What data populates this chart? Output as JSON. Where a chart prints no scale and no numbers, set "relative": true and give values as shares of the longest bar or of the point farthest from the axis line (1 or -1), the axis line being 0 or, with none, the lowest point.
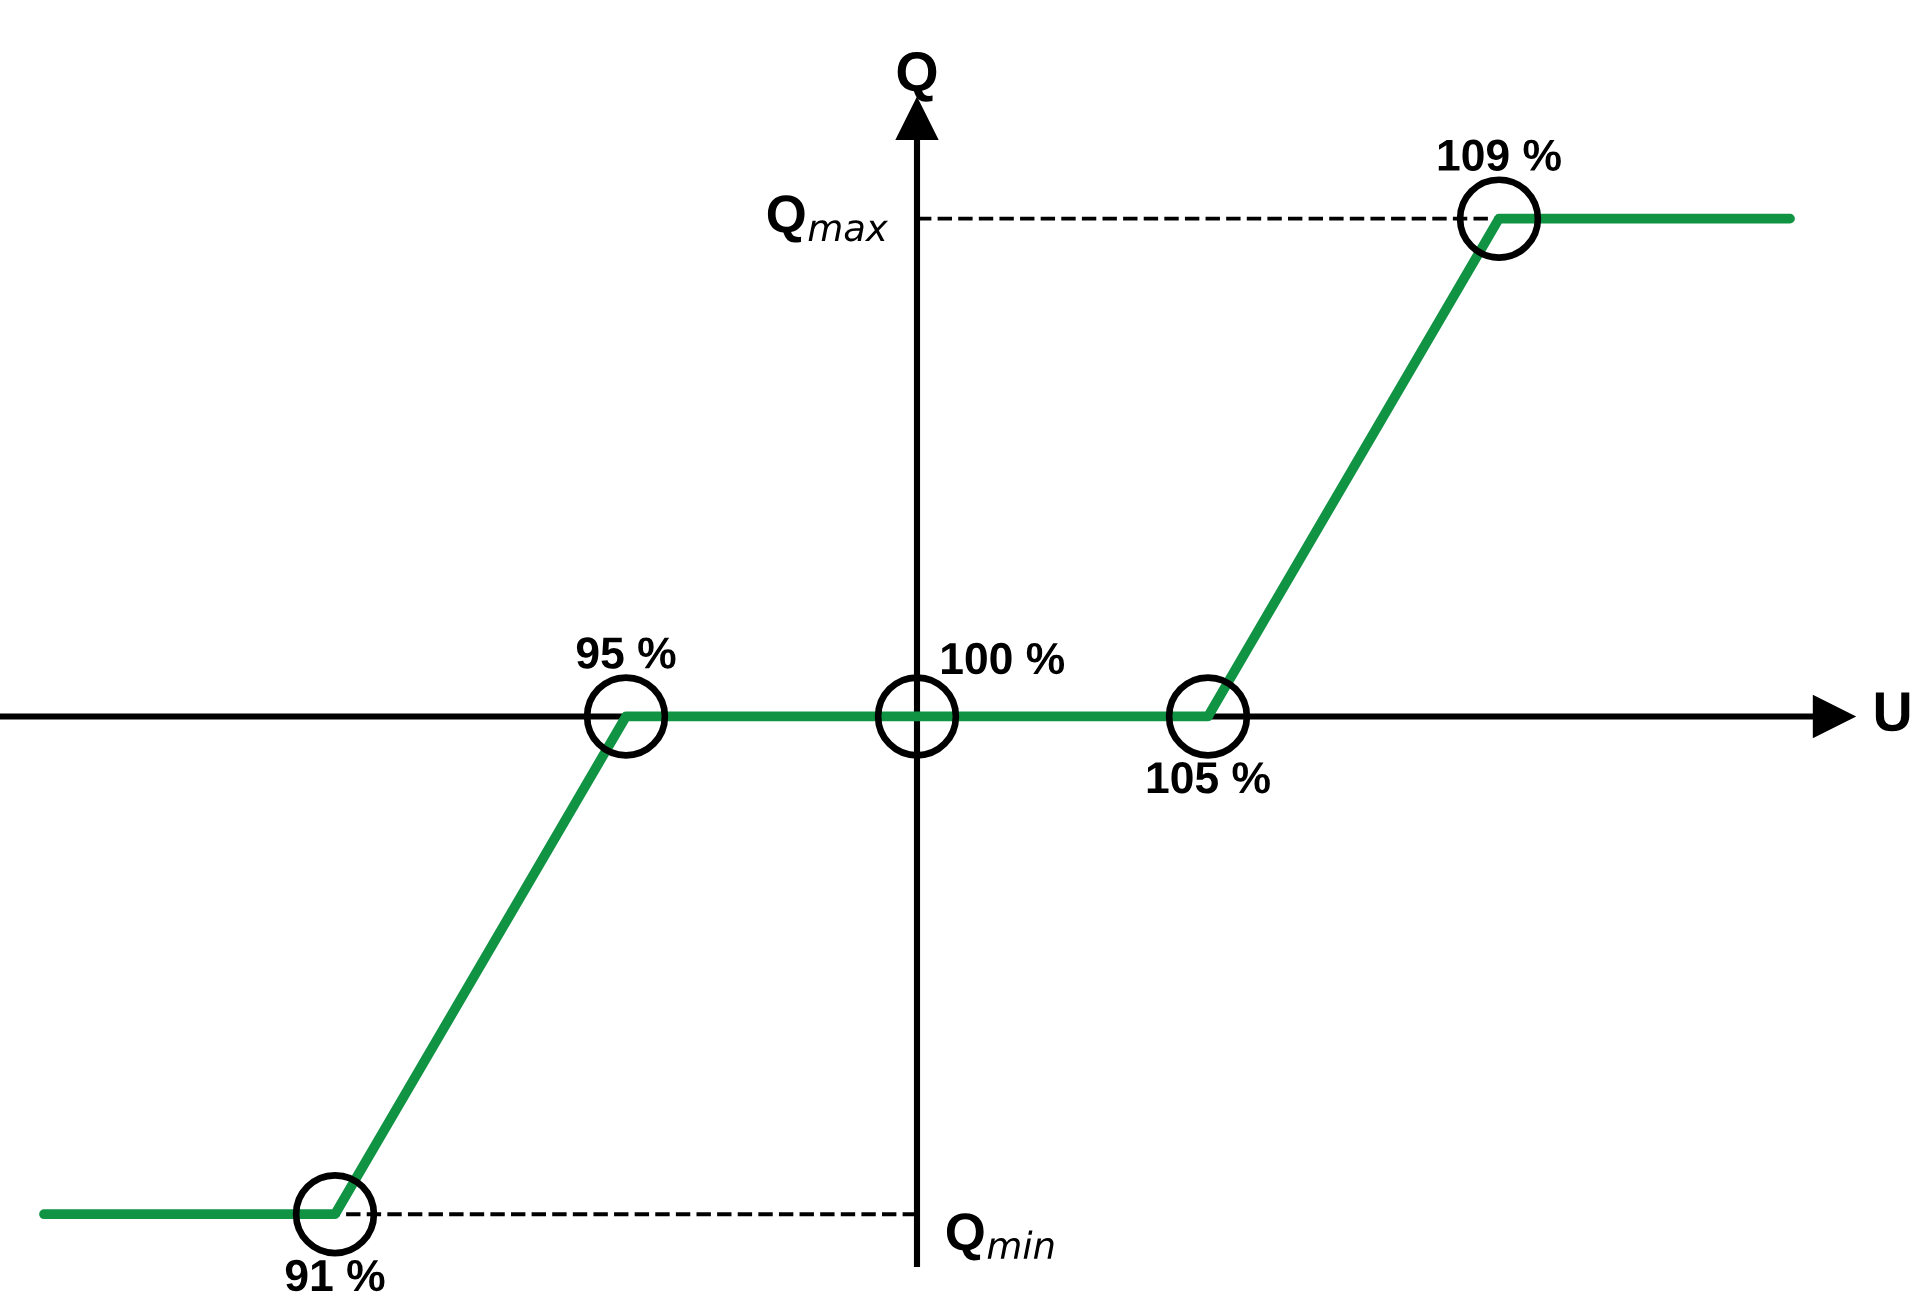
{
  "chart_data": {
    "type": "line",
    "xlabel": "U",
    "ylabel": "Q",
    "relative": true,
    "categories": [
      null,
      null,
      null,
      null,
      null,
      null,
      null
    ],
    "series": [
      {
        "color": "#109444",
        "values": [
          -1,
          -1,
          0,
          0,
          0,
          1,
          1
        ]
      }
    ],
    "marker": "circle",
    "line_style": "solid",
    "legend": false,
    "annotations": [
      {
        "text": "91 %",
        "y": -1
      },
      {
        "text": "95 %",
        "y": 0
      },
      {
        "text": "100 %",
        "y": 0
      },
      {
        "text": "105 %",
        "y": 0
      },
      {
        "text": "109 %",
        "y": 1
      }
    ],
    "ref_lines": [
      {
        "axis": "y",
        "value": 1,
        "label": "Q$_{max}$",
        "line_style": "dashed",
        "color": "#000000"
      },
      {
        "axis": "y",
        "value": -1,
        "label": "Q$_{min}$",
        "line_style": "dashed",
        "color": "#000000"
      }
    ]
  }
}
